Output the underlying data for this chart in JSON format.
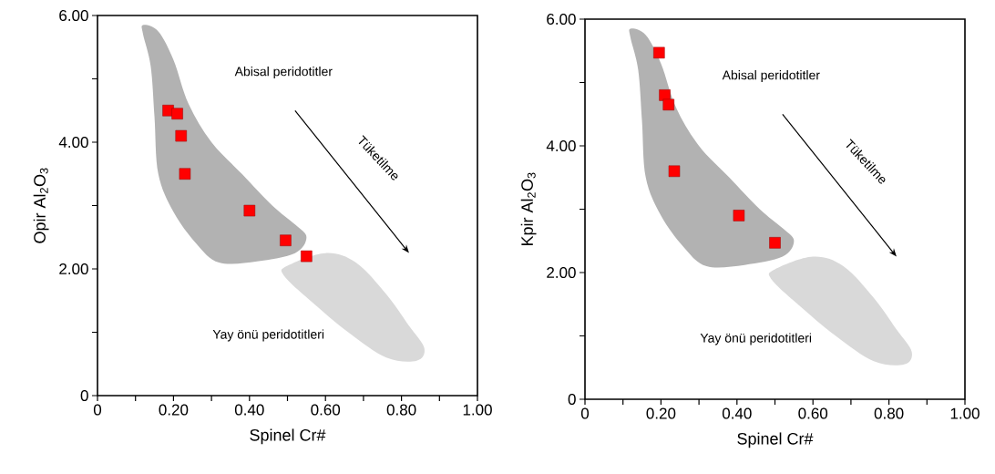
{
  "chart_data": [
    {
      "type": "scatter",
      "xlabel": "Spinel Cr#",
      "ylabel": "Opir Al$_{2}$O$_{3}$",
      "marker": "square",
      "xlim": [
        0,
        1
      ],
      "ylim": [
        0,
        6
      ],
      "xticks": [
        0,
        {
          "value": 0.1,
          "label": null
        },
        {
          "value": 0.2,
          "label": "0.20"
        },
        {
          "value": 0.3,
          "label": null
        },
        {
          "value": 0.4,
          "label": "0.40"
        },
        {
          "value": 0.5,
          "label": null
        },
        {
          "value": 0.6,
          "label": "0.60"
        },
        {
          "value": 0.7,
          "label": null
        },
        {
          "value": 0.8,
          "label": "0.80"
        },
        {
          "value": 0.9,
          "label": null
        },
        {
          "value": 1,
          "label": "1.00"
        }
      ],
      "yticks": [
        0,
        {
          "value": 1,
          "label": null
        },
        {
          "value": 2,
          "label": "2.00"
        },
        {
          "value": 3,
          "label": null
        },
        {
          "value": 4,
          "label": "4.00"
        },
        {
          "value": 5,
          "label": null
        },
        {
          "value": 6,
          "label": "6.00"
        }
      ],
      "annotations": [
        "Abisal peridotitler",
        "Yay önü peridotitleri",
        "Tüketilme"
      ],
      "series": [
        {
          "color": "#ff0000",
          "x": [
            0.186,
            0.21,
            0.22,
            0.23,
            0.4,
            0.495,
            0.55
          ],
          "values": [
            4.5,
            4.45,
            4.1,
            3.5,
            2.92,
            2.45,
            2.2
          ]
        }
      ]
    },
    {
      "type": "scatter",
      "xlabel": "Spinel Cr#",
      "ylabel": "Kpir Al$_{2}$O$_{3}$",
      "marker": "square",
      "xlim": [
        0,
        1
      ],
      "ylim": [
        0,
        6
      ],
      "xticks": [
        0,
        {
          "value": 0.1,
          "label": null
        },
        {
          "value": 0.2,
          "label": "0.20"
        },
        {
          "value": 0.3,
          "label": null
        },
        {
          "value": 0.4,
          "label": "0.40"
        },
        {
          "value": 0.5,
          "label": null
        },
        {
          "value": 0.6,
          "label": "0.60"
        },
        {
          "value": 0.7,
          "label": null
        },
        {
          "value": 0.8,
          "label": "0.80"
        },
        {
          "value": 0.9,
          "label": null
        },
        {
          "value": 1,
          "label": "1.00"
        }
      ],
      "yticks": [
        0,
        {
          "value": 1,
          "label": null
        },
        {
          "value": 2,
          "label": "2.00"
        },
        {
          "value": 3,
          "label": null
        },
        {
          "value": 4,
          "label": "4.00"
        },
        {
          "value": 5,
          "label": null
        },
        {
          "value": 6,
          "label": "6.00"
        }
      ],
      "annotations": [
        "Abisal peridotitler",
        "Yay önü peridotitleri",
        "Tüketilme"
      ],
      "series": [
        {
          "color": "#ff0000",
          "x": [
            0.195,
            0.21,
            0.22,
            0.235,
            0.405,
            0.5
          ],
          "values": [
            5.47,
            4.8,
            4.65,
            3.6,
            2.9,
            2.47
          ]
        }
      ]
    }
  ]
}
